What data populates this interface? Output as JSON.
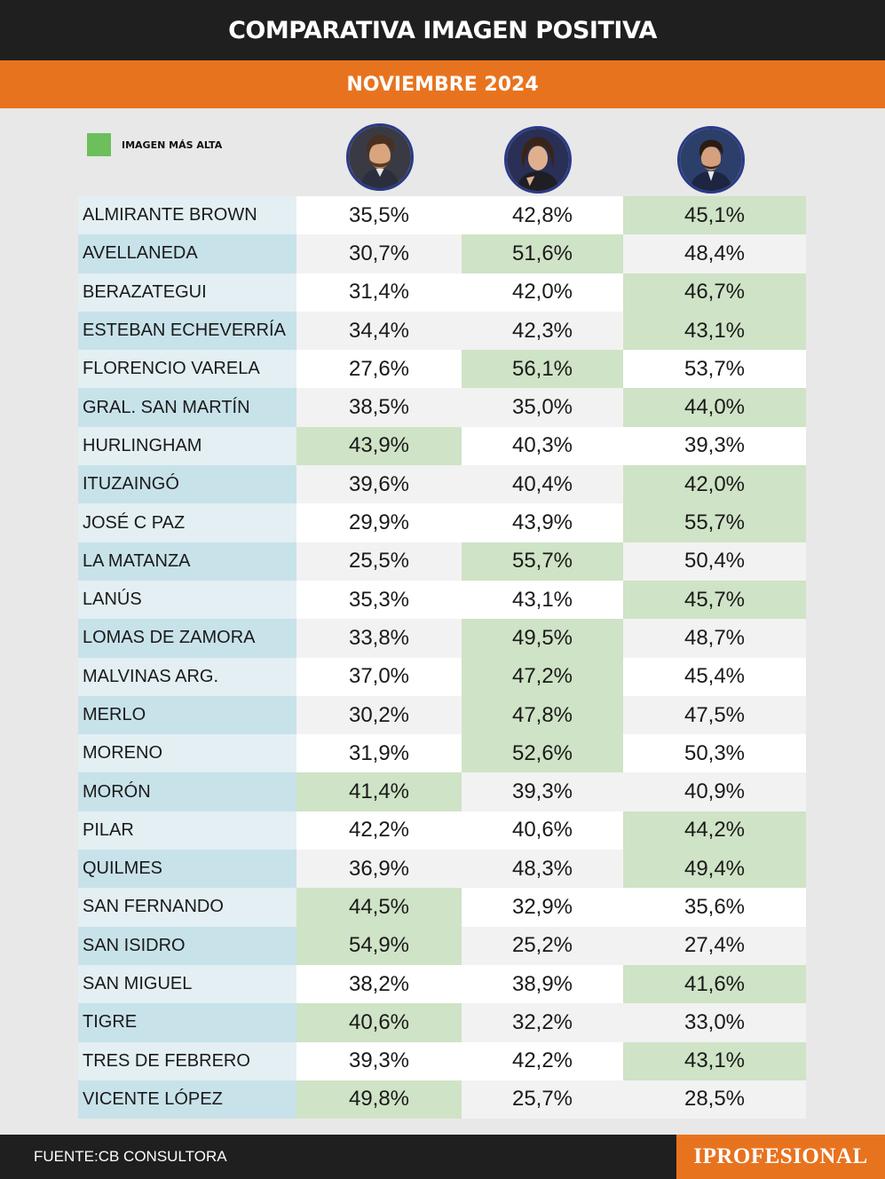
{
  "header": {
    "title": "COMPARATIVA IMAGEN POSITIVA",
    "subtitle": "NOVIEMBRE 2024"
  },
  "legend": {
    "label": "IMAGEN MÁS ALTA",
    "color": "#6cbf5a"
  },
  "colors": {
    "highlight": "#cfe3c6",
    "highlight_light": "#dcebd3",
    "name_blue": "#c8e2ea",
    "name_light": "#e3eff3",
    "row_white": "#ffffff",
    "row_gray": "#f2f2f2"
  },
  "candidates": [
    {
      "avatar": "portrait-icon-candidate-1"
    },
    {
      "avatar": "portrait-icon-candidate-2"
    },
    {
      "avatar": "portrait-icon-candidate-3"
    }
  ],
  "chart_data": {
    "type": "table",
    "rows": [
      {
        "name": "ALMIRANTE BROWN",
        "values": [
          "35,5%",
          "42,8%",
          "45,1%"
        ],
        "highest": 2
      },
      {
        "name": "AVELLANEDA",
        "values": [
          "30,7%",
          "51,6%",
          "48,4%"
        ],
        "highest": 1
      },
      {
        "name": "BERAZATEGUI",
        "values": [
          "31,4%",
          "42,0%",
          "46,7%"
        ],
        "highest": 2
      },
      {
        "name": "ESTEBAN ECHEVERRÍA",
        "values": [
          "34,4%",
          "42,3%",
          "43,1%"
        ],
        "highest": 2
      },
      {
        "name": "FLORENCIO VARELA",
        "values": [
          "27,6%",
          "56,1%",
          "53,7%"
        ],
        "highest": 1
      },
      {
        "name": "GRAL. SAN MARTÍN",
        "values": [
          "38,5%",
          "35,0%",
          "44,0%"
        ],
        "highest": 2
      },
      {
        "name": "HURLINGHAM",
        "values": [
          "43,9%",
          "40,3%",
          "39,3%"
        ],
        "highest": 0
      },
      {
        "name": "ITUZAINGÓ",
        "values": [
          "39,6%",
          "40,4%",
          "42,0%"
        ],
        "highest": 2
      },
      {
        "name": "JOSÉ C PAZ",
        "values": [
          "29,9%",
          "43,9%",
          "55,7%"
        ],
        "highest": 2
      },
      {
        "name": "LA MATANZA",
        "values": [
          "25,5%",
          "55,7%",
          "50,4%"
        ],
        "highest": 1
      },
      {
        "name": "LANÚS",
        "values": [
          "35,3%",
          "43,1%",
          "45,7%"
        ],
        "highest": 2
      },
      {
        "name": "LOMAS DE ZAMORA",
        "values": [
          "33,8%",
          "49,5%",
          "48,7%"
        ],
        "highest": 1
      },
      {
        "name": "MALVINAS ARG.",
        "values": [
          "37,0%",
          "47,2%",
          "45,4%"
        ],
        "highest": 1
      },
      {
        "name": "MERLO",
        "values": [
          "30,2%",
          "47,8%",
          "47,5%"
        ],
        "highest": 1
      },
      {
        "name": "MORENO",
        "values": [
          "31,9%",
          "52,6%",
          "50,3%"
        ],
        "highest": 1
      },
      {
        "name": "MORÓN",
        "values": [
          "41,4%",
          "39,3%",
          "40,9%"
        ],
        "highest": 0
      },
      {
        "name": "PILAR",
        "values": [
          "42,2%",
          "40,6%",
          "44,2%"
        ],
        "highest": 2
      },
      {
        "name": "QUILMES",
        "values": [
          "36,9%",
          "48,3%",
          "49,4%"
        ],
        "highest": 2
      },
      {
        "name": "SAN FERNANDO",
        "values": [
          "44,5%",
          "32,9%",
          "35,6%"
        ],
        "highest": 0
      },
      {
        "name": "SAN ISIDRO",
        "values": [
          "54,9%",
          "25,2%",
          "27,4%"
        ],
        "highest": 0
      },
      {
        "name": "SAN MIGUEL",
        "values": [
          "38,2%",
          "38,9%",
          "41,6%"
        ],
        "highest": 2
      },
      {
        "name": "TIGRE",
        "values": [
          "40,6%",
          "32,2%",
          "33,0%"
        ],
        "highest": 0
      },
      {
        "name": "TRES DE FEBRERO",
        "values": [
          "39,3%",
          "42,2%",
          "43,1%"
        ],
        "highest": 2
      },
      {
        "name": "VICENTE LÓPEZ",
        "values": [
          "49,8%",
          "25,7%",
          "28,5%"
        ],
        "highest": 0
      }
    ]
  },
  "footer": {
    "source": "FUENTE:CB CONSULTORA",
    "brand": "IPROFESIONAL"
  }
}
